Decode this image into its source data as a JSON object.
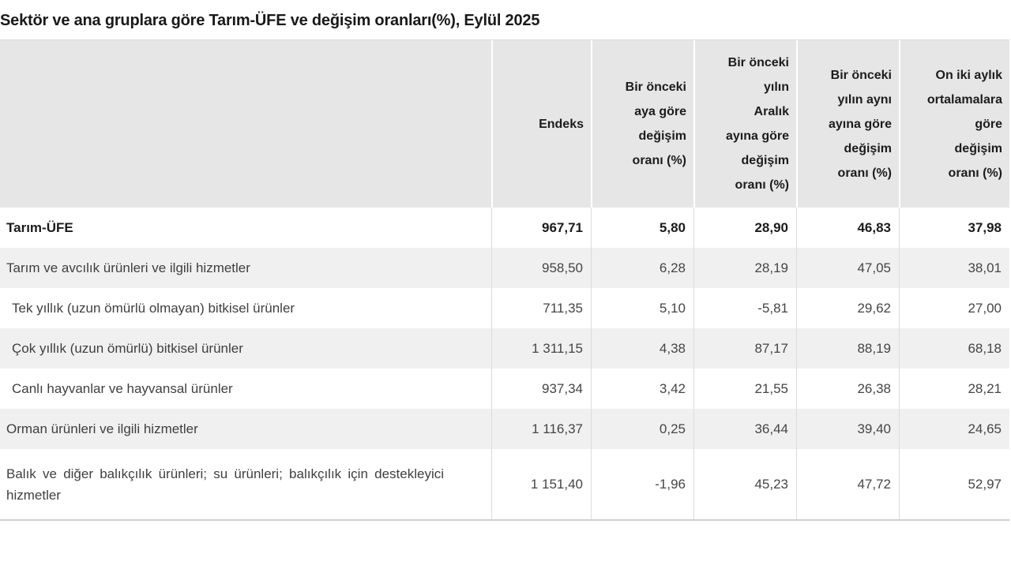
{
  "chart_data": {
    "type": "table",
    "title": "Sektör ve ana gruplara göre Tarım-ÜFE ve değişim oranları(%), Eylül 2025",
    "columns": [
      "",
      "Endeks",
      "Bir önceki\naya göre\ndeğişim\noranı (%)",
      "Bir önceki\nyılın\nAralık\nayına göre\ndeğişim\noranı (%)",
      "Bir önceki\nyılın aynı\nayına göre\ndeğişim\noranı (%)",
      "On iki aylık\nortalamalara\ngöre\ndeğişim\noranı (%)"
    ],
    "rows": [
      {
        "label": "Tarım-ÜFE",
        "bold": true,
        "indent": false,
        "values": [
          "967,71",
          "5,80",
          "28,90",
          "46,83",
          "37,98"
        ]
      },
      {
        "label": "Tarım ve avcılık ürünleri ve ilgili hizmetler",
        "bold": false,
        "indent": false,
        "values": [
          "958,50",
          "6,28",
          "28,19",
          "47,05",
          "38,01"
        ]
      },
      {
        "label": "Tek yıllık (uzun ömürlü olmayan) bitkisel ürünler",
        "bold": false,
        "indent": true,
        "values": [
          "711,35",
          "5,10",
          "-5,81",
          "29,62",
          "27,00"
        ]
      },
      {
        "label": "Çok yıllık (uzun ömürlü) bitkisel ürünler",
        "bold": false,
        "indent": true,
        "values": [
          "1 311,15",
          "4,38",
          "87,17",
          "88,19",
          "68,18"
        ]
      },
      {
        "label": "Canlı hayvanlar ve hayvansal ürünler",
        "bold": false,
        "indent": true,
        "values": [
          "937,34",
          "3,42",
          "21,55",
          "26,38",
          "28,21"
        ]
      },
      {
        "label": "Orman ürünleri ve ilgili hizmetler",
        "bold": false,
        "indent": false,
        "values": [
          "1 116,37",
          "0,25",
          "36,44",
          "39,40",
          "24,65"
        ]
      },
      {
        "label": "Balık ve diğer balıkçılık ürünleri; su ürünleri; balıkçılık için destekleyici hizmetler",
        "bold": false,
        "indent": false,
        "values": [
          "1 151,40",
          "-1,96",
          "45,23",
          "47,72",
          "52,97"
        ]
      }
    ],
    "colors": {
      "header_bg": "#e6e6e6",
      "alt_row_bg": "#f0f0f0",
      "bold_text": "#1b1b1b",
      "body_text": "#454545"
    }
  }
}
